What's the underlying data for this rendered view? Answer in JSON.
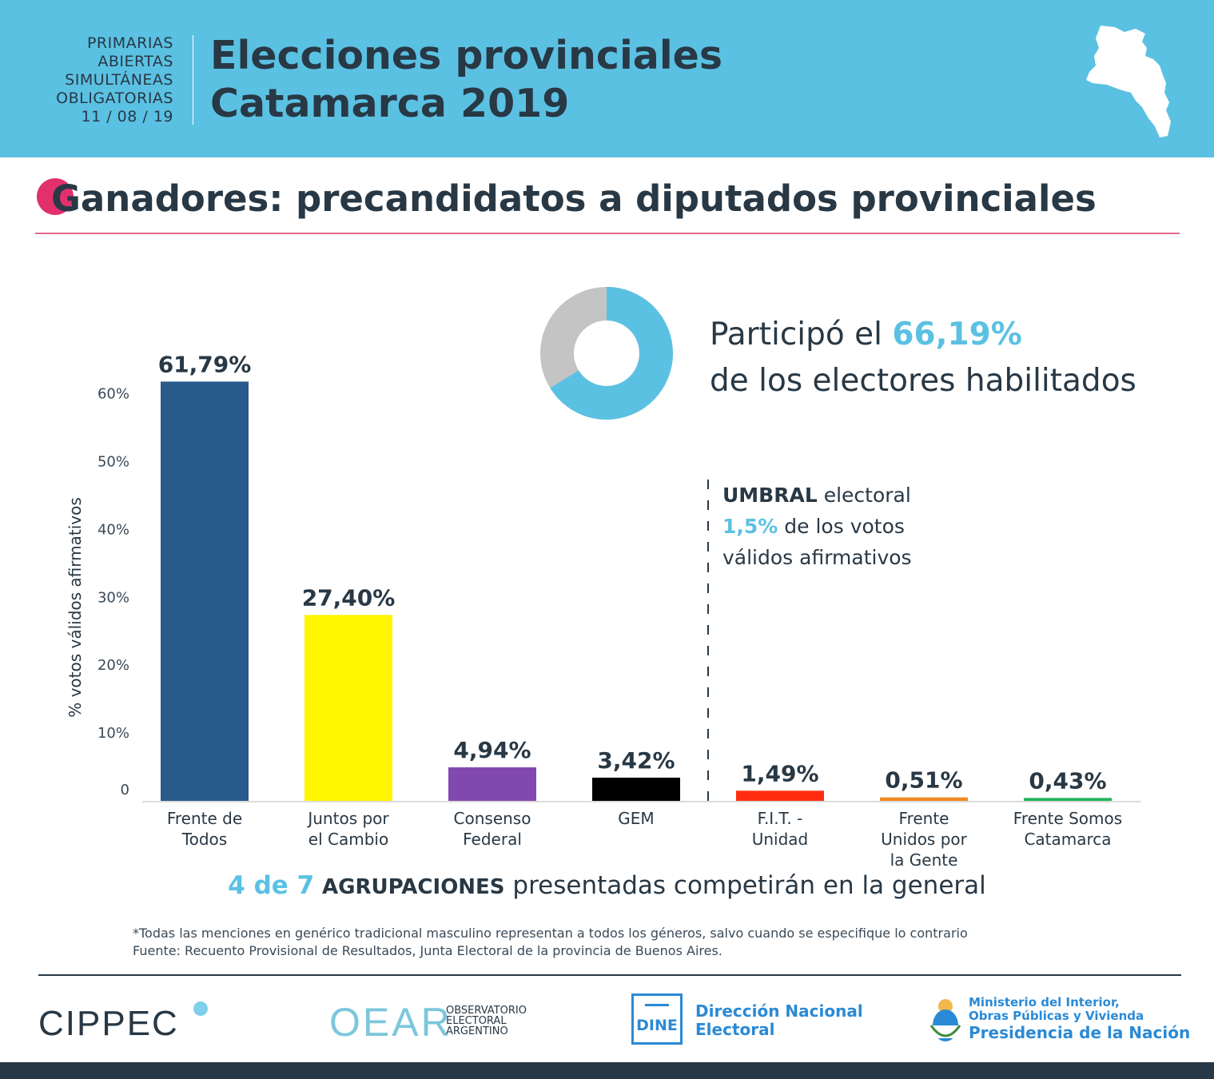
{
  "header": {
    "paso_lines": [
      "PRIMARIAS",
      "ABIERTAS",
      "SIMULTÁNEAS",
      "OBLIGATORIAS",
      "11 / 08 / 19"
    ],
    "title_line1": "Elecciones provinciales",
    "title_line2": "Catamarca 2019"
  },
  "section_title": "Ganadores: precandidatos a diputados provinciales",
  "participation": {
    "prefix": "Participó el ",
    "value_label": "66,19%",
    "line2": "de los electores habilitados",
    "fraction": 0.6619
  },
  "threshold": {
    "word_bold": "UMBRAL",
    "word_rest": " electoral",
    "pct": "1,5%",
    "rest2": " de los votos",
    "line3": "válidos afirmativos"
  },
  "summary": {
    "count": "4 de 7",
    "bold": "AGRUPACIONES",
    "rest": "presentadas competirán en la general"
  },
  "notes": [
    "*Todas las menciones en genérico tradicional masculino representan a todos los géneros, salvo cuando se especifique lo contrario",
    "Fuente: Recuento Provisional de Resultados, Junta Electoral de la provincia de Buenos Aires."
  ],
  "footer": {
    "cippec": "CIPPEC",
    "oear_big": "OEAR",
    "oear_lines": [
      "OBSERVATORIO",
      "ELECTORAL",
      "ARGENTINO"
    ],
    "dine_box": "DINE",
    "dine_lines": [
      "Dirección Nacional",
      "Electoral"
    ],
    "ministerio_lines": [
      "Ministerio del Interior,",
      "Obras Públicas y Vivienda"
    ],
    "presidencia": "Presidencia de la Nación"
  },
  "colors": {
    "accent": "#5bc1e3",
    "dark": "#283845",
    "pink": "#e2306c",
    "donut_rest": "#c4c4c4"
  },
  "chart_data": {
    "type": "bar",
    "title": "Ganadores: precandidatos a diputados provinciales",
    "ylabel": "% votos válidos afirmativos",
    "ylim": [
      0,
      62
    ],
    "yticks": [
      0,
      10,
      20,
      30,
      40,
      50,
      60
    ],
    "ytick_labels": [
      "0",
      "10%",
      "20%",
      "30%",
      "40%",
      "50%",
      "60%"
    ],
    "threshold": 1.5,
    "categories": [
      [
        "Frente de",
        "Todos"
      ],
      [
        "Juntos por",
        "el Cambio"
      ],
      [
        "Consenso",
        "Federal"
      ],
      [
        "GEM"
      ],
      [
        "F.I.T. -",
        "Unidad"
      ],
      [
        "Frente",
        "Unidos por",
        "la Gente"
      ],
      [
        "Frente Somos",
        "Catamarca"
      ]
    ],
    "values": [
      61.79,
      27.4,
      4.94,
      3.42,
      1.49,
      0.51,
      0.43
    ],
    "value_labels": [
      "61,79%",
      "27,40%",
      "4,94%",
      "3,42%",
      "1,49%",
      "0,51%",
      "0,43%"
    ],
    "colors": [
      "#285a8c",
      "#fff600",
      "#8148b0",
      "#000000",
      "#ff2d10",
      "#f08a20",
      "#24b35c"
    ]
  }
}
